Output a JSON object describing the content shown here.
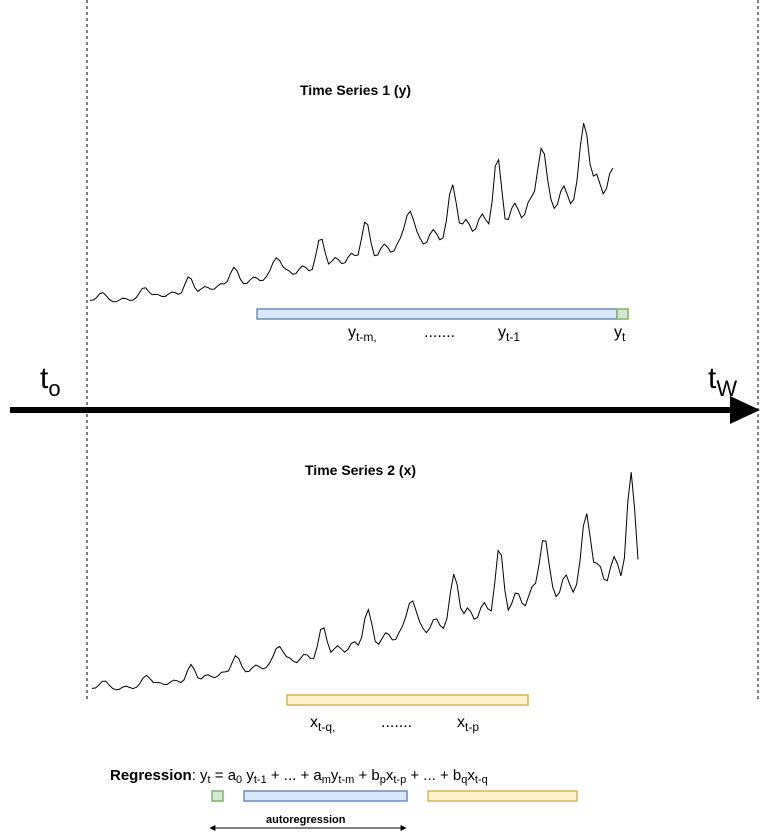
{
  "series1": {
    "title": "Time Series 1 (y)",
    "labels": {
      "ym_base": "y",
      "ym_sub": "t-m,",
      "dots": ".......",
      "y1_base": "y",
      "y1_sub": "t-1",
      "yt_base": "y",
      "yt_sub": "t"
    }
  },
  "timeline": {
    "start_base": "t",
    "start_sub": "o",
    "end_base": "t",
    "end_sub": "W"
  },
  "series2": {
    "title": "Time Series 2 (x)",
    "labels": {
      "xq_base": "x",
      "xq_sub": "t-q,",
      "dots": ".......",
      "xp_base": "x",
      "xp_sub": "t-p"
    }
  },
  "regression": {
    "label": "Regression",
    "colon": ":",
    "eq": {
      "y": "y",
      "t": "t",
      "eq": " = a",
      "a0": "0",
      " y": " y",
      "t1": "t-1",
      "mid1": "  + ... + a",
      "m": "m",
      "y2": "y",
      "tm": "t-m",
      "plus_b": " + b",
      "p": "p",
      "x1": "x",
      "tp": "t-p",
      "mid2": " + ... + b",
      "q": "q",
      "x2": "x",
      "tq": "t-q"
    },
    "autoregression_label": "autoregression"
  },
  "colors": {
    "blue_fill": "#dae8fc",
    "blue_stroke": "#6c8ebf",
    "green_fill": "#d5e8d4",
    "green_stroke": "#82b366",
    "yellow_fill": "#fff2cc",
    "yellow_stroke": "#d6b656"
  }
}
